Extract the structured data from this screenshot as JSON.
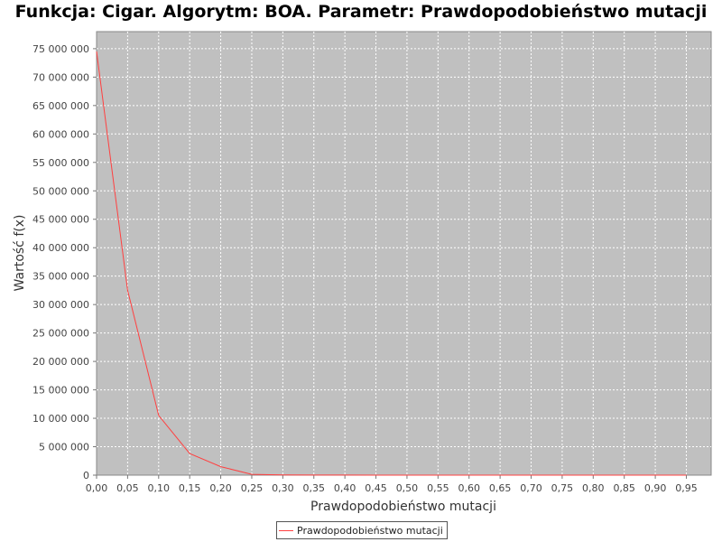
{
  "chart_data": {
    "type": "line",
    "title": "Funkcja: Cigar. Algorytm: BOA. Parametr: Prawdopodobieństwo mutacji",
    "xlabel": "Prawdopodobieństwo mutacji",
    "ylabel": "Wartość f(x)",
    "xlim": [
      0.0,
      0.99
    ],
    "ylim": [
      0,
      78000000
    ],
    "x_ticks": [
      "0,00",
      "0,05",
      "0,10",
      "0,15",
      "0,20",
      "0,25",
      "0,30",
      "0,35",
      "0,40",
      "0,45",
      "0,50",
      "0,55",
      "0,60",
      "0,65",
      "0,70",
      "0,75",
      "0,80",
      "0,85",
      "0,90",
      "0,95"
    ],
    "y_ticks": [
      "0",
      "5 000 000",
      "10 000 000",
      "15 000 000",
      "20 000 000",
      "25 000 000",
      "30 000 000",
      "35 000 000",
      "40 000 000",
      "45 000 000",
      "50 000 000",
      "55 000 000",
      "60 000 000",
      "65 000 000",
      "70 000 000",
      "75 000 000"
    ],
    "grid": true,
    "legend_position": "bottom-center",
    "series": [
      {
        "name": "Prawdopodobieństwo mutacji",
        "color": "#ff4040",
        "x": [
          0.0,
          0.05,
          0.1,
          0.15,
          0.2,
          0.25,
          0.3,
          0.35,
          0.4,
          0.45,
          0.5,
          0.55,
          0.6,
          0.65,
          0.7,
          0.75,
          0.8,
          0.85,
          0.9,
          0.95
        ],
        "y": [
          74500000,
          32500000,
          10500000,
          3800000,
          1500000,
          150000,
          50000,
          20000,
          10000,
          5000,
          3000,
          2000,
          1000,
          1000,
          500,
          500,
          500,
          500,
          500,
          500
        ]
      }
    ]
  },
  "colors": {
    "plot_background": "#c0c0c0",
    "gridline": "#ffffff",
    "series_line": "#ff4040"
  }
}
